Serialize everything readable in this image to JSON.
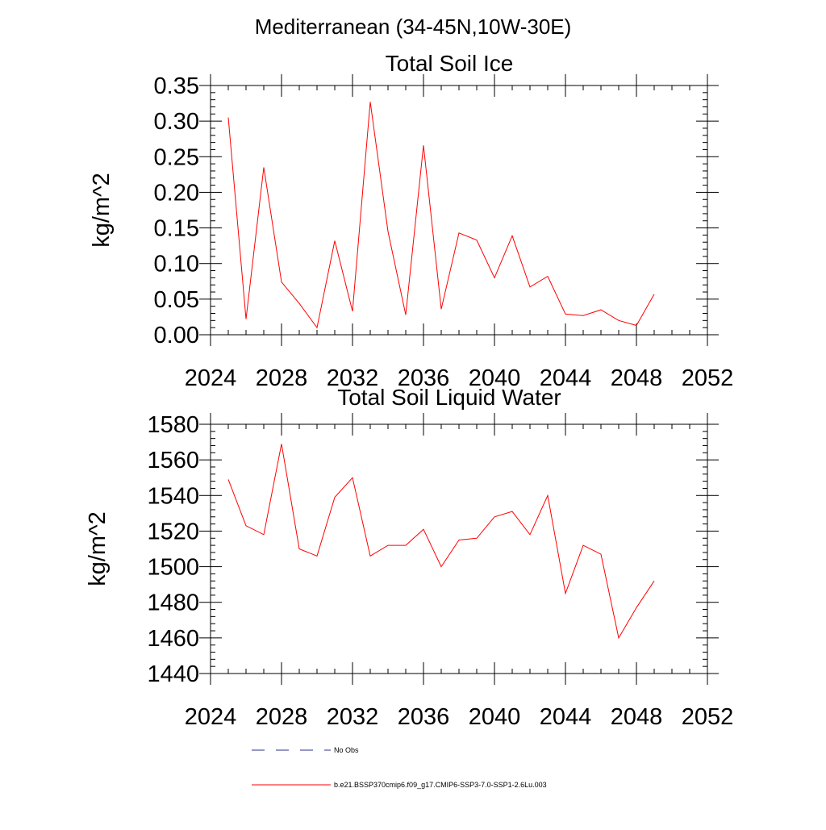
{
  "page": {
    "title": "Mediterranean (34-45N,10W-30E)"
  },
  "chart_data": [
    {
      "type": "line",
      "title": "Total Soil Ice",
      "xlabel": "",
      "ylabel": "kg/m^2",
      "xlim": [
        2024,
        2052
      ],
      "ylim": [
        0.0,
        0.35
      ],
      "x_ticks": [
        "2024",
        "2028",
        "2032",
        "2036",
        "2040",
        "2044",
        "2048",
        "2052"
      ],
      "y_ticks": [
        "0.00",
        "0.05",
        "0.10",
        "0.15",
        "0.20",
        "0.25",
        "0.30",
        "0.35"
      ],
      "x": [
        2025,
        2026,
        2027,
        2028,
        2029,
        2030,
        2031,
        2032,
        2033,
        2034,
        2035,
        2036,
        2037,
        2038,
        2039,
        2040,
        2041,
        2042,
        2043,
        2044,
        2045,
        2046,
        2047,
        2048,
        2049
      ],
      "series": [
        {
          "color": "#ff0000",
          "values": [
            0.305,
            0.022,
            0.235,
            0.074,
            0.044,
            0.01,
            0.132,
            0.033,
            0.327,
            0.145,
            0.028,
            0.266,
            0.036,
            0.143,
            0.133,
            0.08,
            0.139,
            0.067,
            0.082,
            0.029,
            0.027,
            0.035,
            0.02,
            0.013,
            0.057
          ]
        }
      ],
      "grid": false
    },
    {
      "type": "line",
      "title": "Total Soil Liquid Water",
      "xlabel": "",
      "ylabel": "kg/m^2",
      "xlim": [
        2024,
        2052
      ],
      "ylim": [
        1440,
        1580
      ],
      "x_ticks": [
        "2024",
        "2028",
        "2032",
        "2036",
        "2040",
        "2044",
        "2048",
        "2052"
      ],
      "y_ticks": [
        "1440",
        "1460",
        "1480",
        "1500",
        "1520",
        "1540",
        "1560",
        "1580"
      ],
      "x": [
        2025,
        2026,
        2027,
        2028,
        2029,
        2030,
        2031,
        2032,
        2033,
        2034,
        2035,
        2036,
        2037,
        2038,
        2039,
        2040,
        2041,
        2042,
        2043,
        2044,
        2045,
        2046,
        2047,
        2048,
        2049
      ],
      "series": [
        {
          "color": "#ff0000",
          "values": [
            1549,
            1523,
            1518,
            1569,
            1510,
            1506,
            1539,
            1550,
            1506,
            1512,
            1512,
            1521,
            1500,
            1515,
            1516,
            1528,
            1531,
            1518,
            1540,
            1485,
            1512,
            1507,
            1460,
            1477,
            1492
          ]
        }
      ],
      "grid": false
    }
  ],
  "legend": {
    "position": "bottom",
    "entries": [
      {
        "label": "No Obs",
        "color": "#2b2f8a",
        "style": "dashed"
      },
      {
        "label": "b.e21.BSSP370cmip6.f09_g17.CMIP6-SSP3-7.0-SSP1-2.6Lu.003",
        "color": "#ff0000",
        "style": "solid"
      }
    ]
  }
}
